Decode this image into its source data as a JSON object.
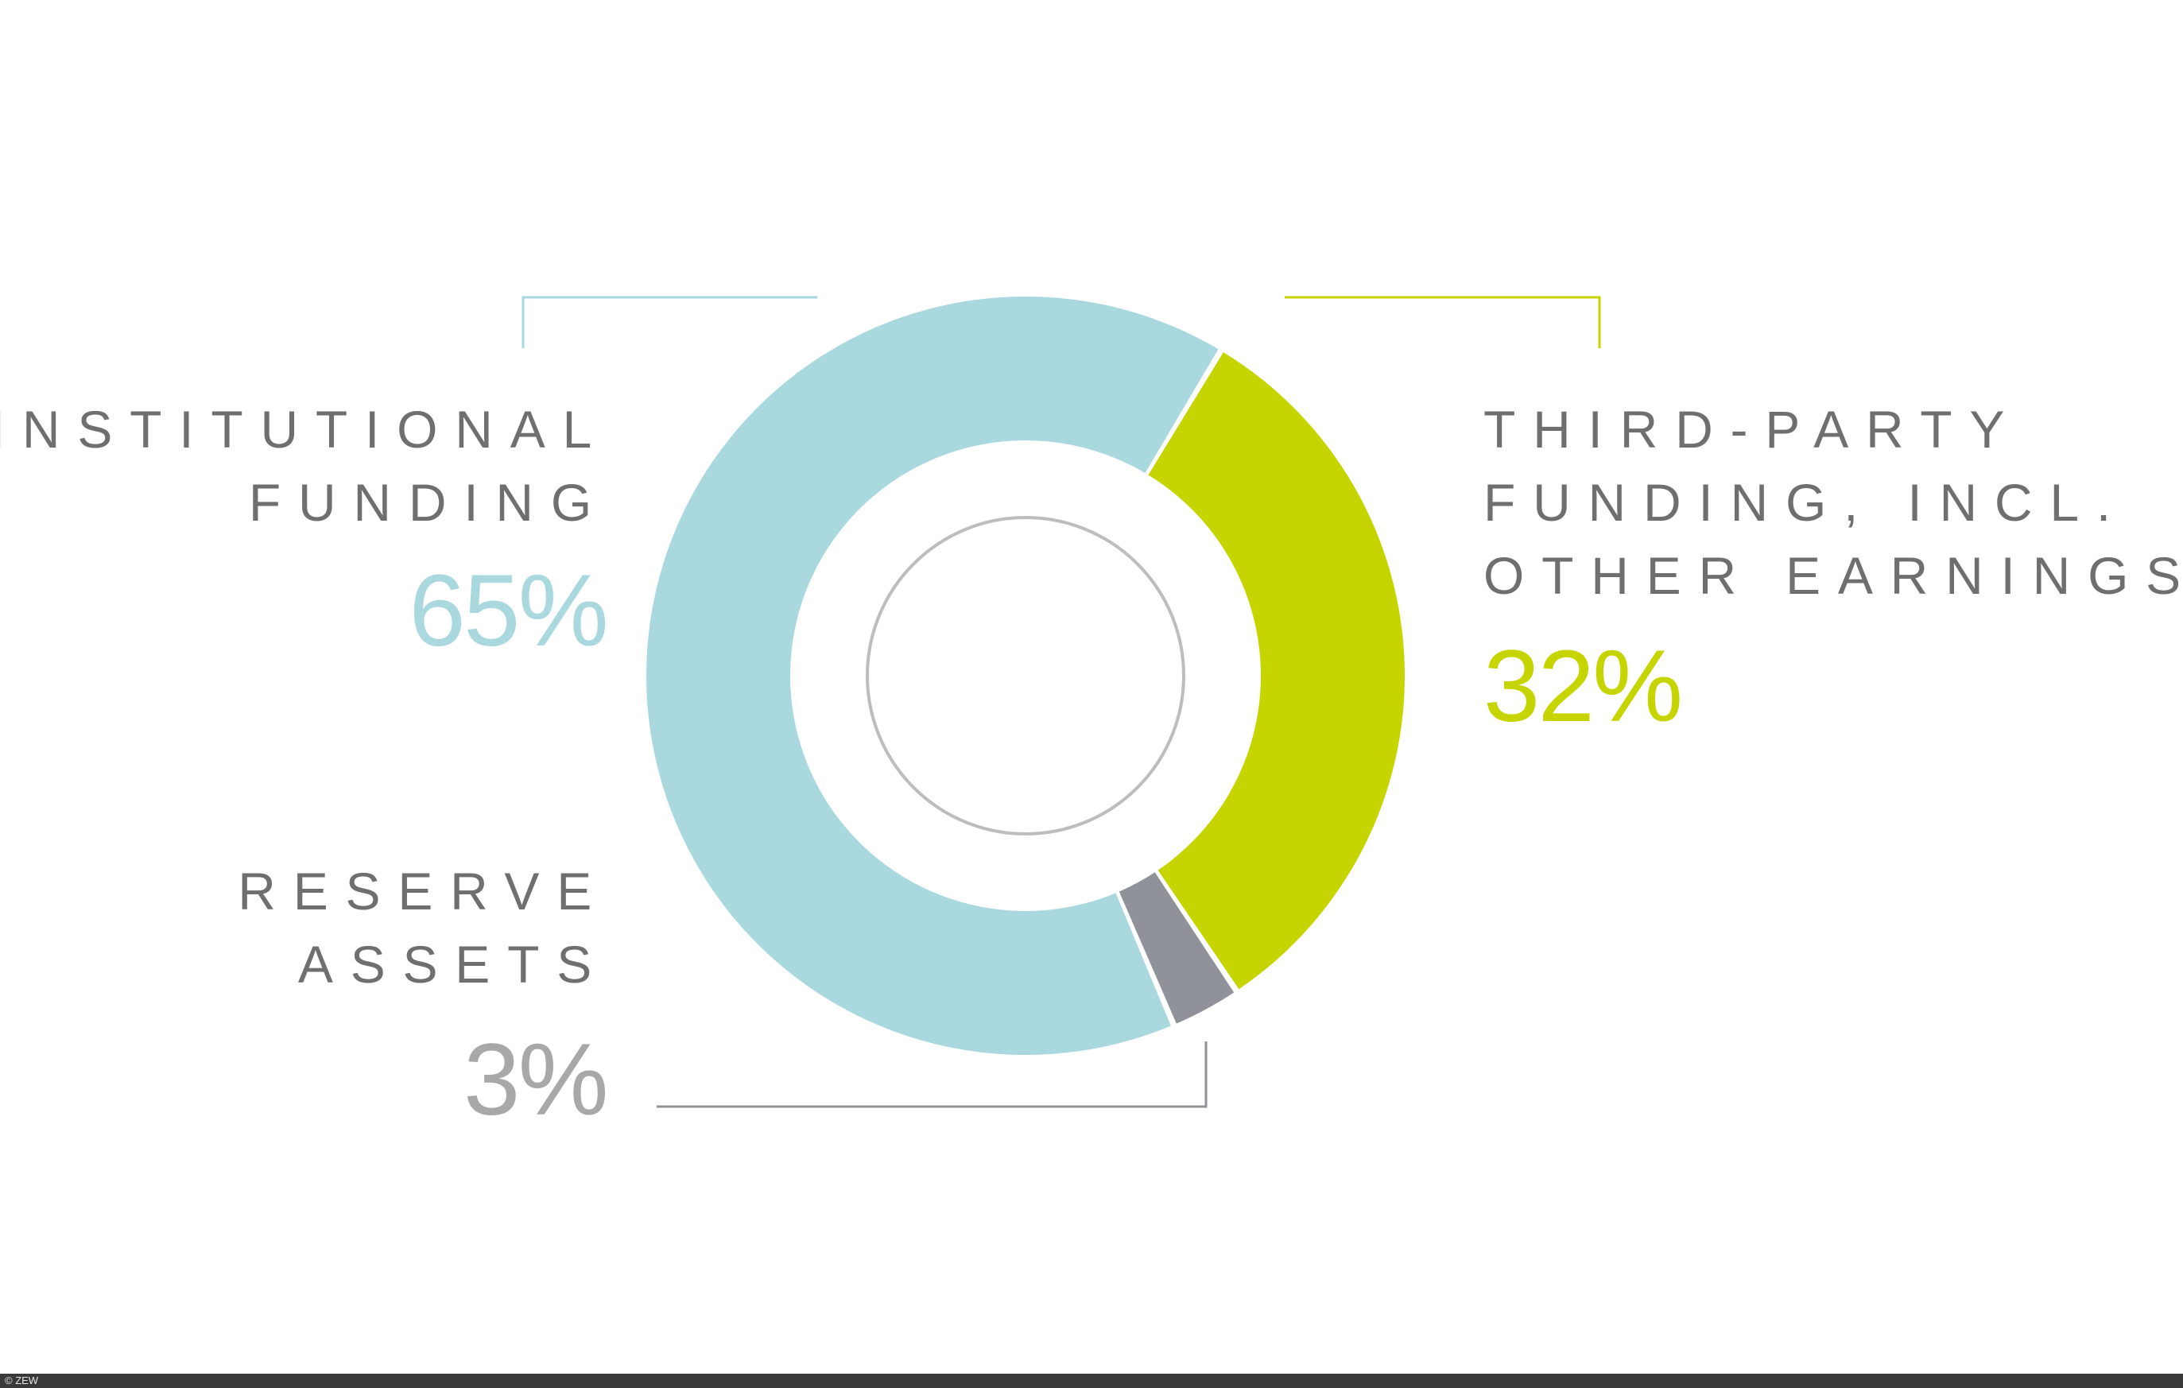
{
  "colors": {
    "institutional": "#a9d8df",
    "third_party": "#c6d400",
    "reserve": "#8f9399",
    "reserve_text": "#a8a8a8",
    "label_text": "#6f6f6f",
    "inner_ring": "#bdbdbd"
  },
  "chart_data": {
    "type": "pie",
    "variant": "donut",
    "slices": [
      {
        "key": "institutional",
        "label_lines": [
          "INSTITUTIONAL",
          "FUNDING"
        ],
        "value": 65,
        "value_label": "65%"
      },
      {
        "key": "third_party",
        "label_lines": [
          "THIRD-PARTY",
          "FUNDING, INCL.",
          "OTHER EARNINGS"
        ],
        "value": 32,
        "value_label": "32%"
      },
      {
        "key": "reserve",
        "label_lines": [
          "RESERVE",
          "ASSETS"
        ],
        "value": 3,
        "value_label": "3%"
      }
    ],
    "legend": "none"
  },
  "footer": {
    "credit": "© ZEW"
  }
}
